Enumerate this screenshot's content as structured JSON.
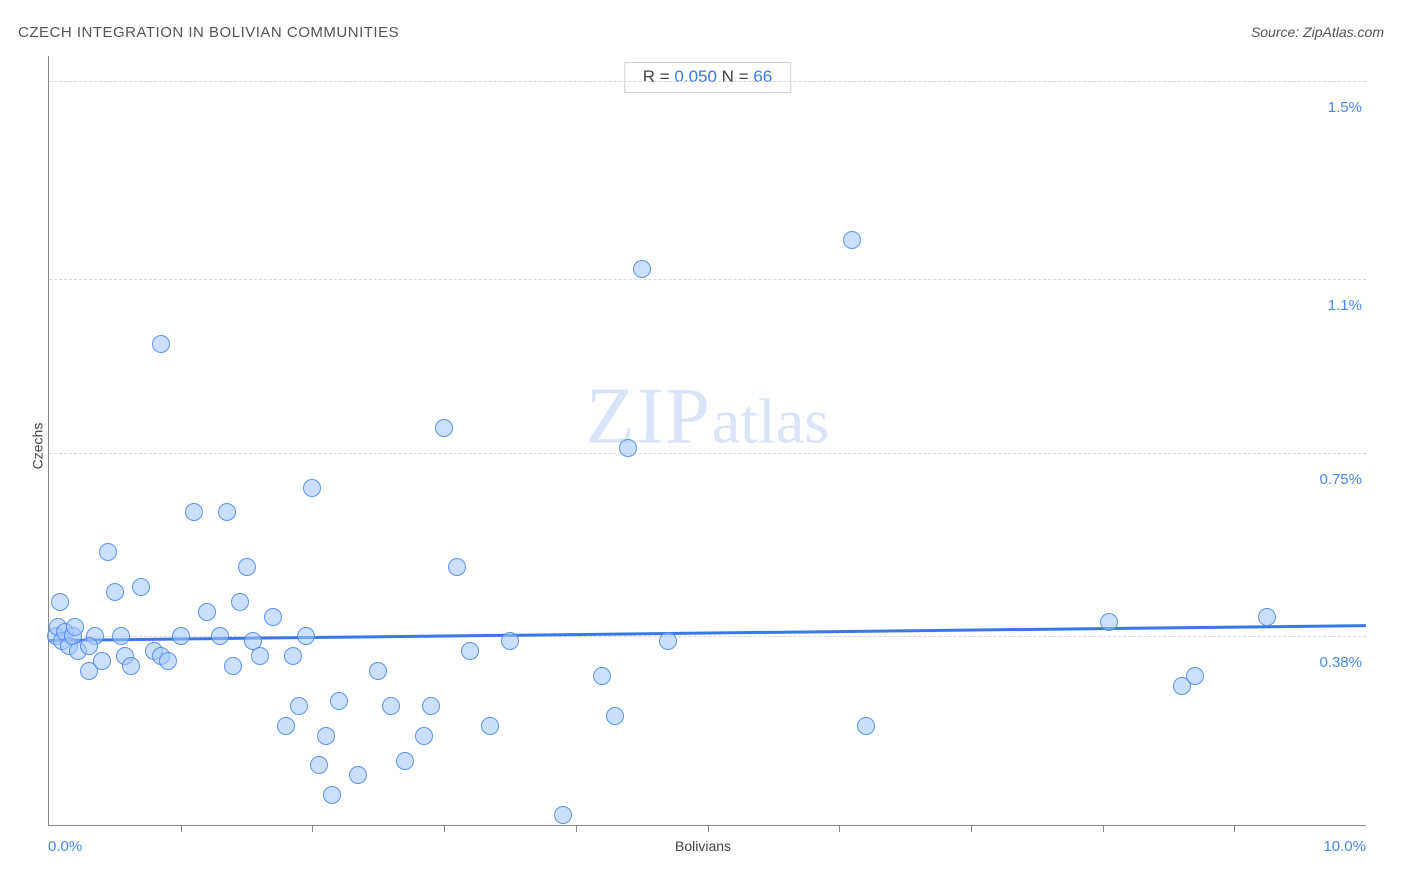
{
  "title": "CZECH INTEGRATION IN BOLIVIAN COMMUNITIES",
  "source_prefix": "Source: ",
  "source_name": "ZipAtlas.com",
  "watermark_big": "ZIP",
  "watermark_small": "atlas",
  "stats": {
    "r_label": "R = ",
    "r_value": "0.050",
    "n_label": "   N = ",
    "n_value": "66"
  },
  "chart": {
    "type": "scatter",
    "xlabel": "Bolivians",
    "ylabel": "Czechs",
    "xlim": [
      0.0,
      10.0
    ],
    "ylim": [
      0.0,
      1.55
    ],
    "xmin_label": "0.0%",
    "xmax_label": "10.0%",
    "y_gridlines": [
      {
        "value": 0.38,
        "label": "0.38%"
      },
      {
        "value": 0.75,
        "label": "0.75%"
      },
      {
        "value": 1.1,
        "label": "1.1%"
      },
      {
        "value": 1.5,
        "label": "1.5%"
      }
    ],
    "x_ticks": [
      1.0,
      2.0,
      3.0,
      4.0,
      5.0,
      6.0,
      7.0,
      8.0,
      9.0
    ],
    "background_color": "#ffffff",
    "grid_color": "#d8d8d8",
    "point_fill": "rgba(160,198,255,0.55)",
    "point_stroke": "rgba(74,134,232,0.85)",
    "point_radius": 9,
    "regression": {
      "color": "#3b78e7",
      "width": 3,
      "y_at_xmin": 0.375,
      "y_at_xmax": 0.405
    },
    "points": [
      {
        "x": 0.05,
        "y": 0.38
      },
      {
        "x": 0.07,
        "y": 0.4
      },
      {
        "x": 0.1,
        "y": 0.37
      },
      {
        "x": 0.12,
        "y": 0.39
      },
      {
        "x": 0.15,
        "y": 0.36
      },
      {
        "x": 0.18,
        "y": 0.38
      },
      {
        "x": 0.2,
        "y": 0.4
      },
      {
        "x": 0.22,
        "y": 0.35
      },
      {
        "x": 0.08,
        "y": 0.45
      },
      {
        "x": 0.3,
        "y": 0.31
      },
      {
        "x": 0.35,
        "y": 0.38
      },
      {
        "x": 0.4,
        "y": 0.33
      },
      {
        "x": 0.45,
        "y": 0.55
      },
      {
        "x": 0.5,
        "y": 0.47
      },
      {
        "x": 0.55,
        "y": 0.38
      },
      {
        "x": 0.58,
        "y": 0.34
      },
      {
        "x": 0.62,
        "y": 0.32
      },
      {
        "x": 0.3,
        "y": 0.36
      },
      {
        "x": 0.7,
        "y": 0.48
      },
      {
        "x": 0.8,
        "y": 0.35
      },
      {
        "x": 0.85,
        "y": 0.34
      },
      {
        "x": 0.9,
        "y": 0.33
      },
      {
        "x": 0.85,
        "y": 0.97
      },
      {
        "x": 1.0,
        "y": 0.38
      },
      {
        "x": 1.1,
        "y": 0.63
      },
      {
        "x": 1.2,
        "y": 0.43
      },
      {
        "x": 1.3,
        "y": 0.38
      },
      {
        "x": 1.35,
        "y": 0.63
      },
      {
        "x": 1.4,
        "y": 0.32
      },
      {
        "x": 1.45,
        "y": 0.45
      },
      {
        "x": 1.5,
        "y": 0.52
      },
      {
        "x": 1.55,
        "y": 0.37
      },
      {
        "x": 1.6,
        "y": 0.34
      },
      {
        "x": 1.7,
        "y": 0.42
      },
      {
        "x": 1.8,
        "y": 0.2
      },
      {
        "x": 1.85,
        "y": 0.34
      },
      {
        "x": 1.9,
        "y": 0.24
      },
      {
        "x": 1.95,
        "y": 0.38
      },
      {
        "x": 2.0,
        "y": 0.68
      },
      {
        "x": 2.05,
        "y": 0.12
      },
      {
        "x": 2.1,
        "y": 0.18
      },
      {
        "x": 2.15,
        "y": 0.06
      },
      {
        "x": 2.2,
        "y": 0.25
      },
      {
        "x": 2.35,
        "y": 0.1
      },
      {
        "x": 2.5,
        "y": 0.31
      },
      {
        "x": 2.6,
        "y": 0.24
      },
      {
        "x": 2.7,
        "y": 0.13
      },
      {
        "x": 2.85,
        "y": 0.18
      },
      {
        "x": 2.9,
        "y": 0.24
      },
      {
        "x": 3.0,
        "y": 0.8
      },
      {
        "x": 3.1,
        "y": 0.52
      },
      {
        "x": 3.2,
        "y": 0.35
      },
      {
        "x": 3.35,
        "y": 0.2
      },
      {
        "x": 3.5,
        "y": 0.37
      },
      {
        "x": 3.9,
        "y": 0.02
      },
      {
        "x": 4.2,
        "y": 0.3
      },
      {
        "x": 4.3,
        "y": 0.22
      },
      {
        "x": 4.4,
        "y": 0.76
      },
      {
        "x": 4.5,
        "y": 1.12
      },
      {
        "x": 4.7,
        "y": 0.37
      },
      {
        "x": 6.1,
        "y": 1.18
      },
      {
        "x": 6.2,
        "y": 0.2
      },
      {
        "x": 8.05,
        "y": 0.41
      },
      {
        "x": 8.6,
        "y": 0.28
      },
      {
        "x": 8.7,
        "y": 0.3
      },
      {
        "x": 9.25,
        "y": 0.42
      }
    ]
  }
}
